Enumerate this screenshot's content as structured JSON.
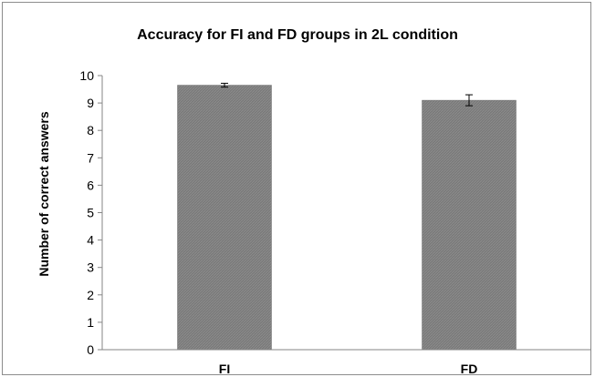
{
  "chart_data": {
    "type": "bar",
    "title": "Accuracy for FI and FD groups in 2L condition",
    "xlabel": "",
    "ylabel": "Number of correct answers",
    "categories": [
      "FI",
      "FD"
    ],
    "values": [
      9.65,
      9.1
    ],
    "error": [
      0.07,
      0.2
    ],
    "ylim": [
      0,
      10
    ],
    "yticks": [
      "0",
      "1",
      "2",
      "3",
      "4",
      "5",
      "6",
      "7",
      "8",
      "9",
      "10"
    ],
    "grid": false,
    "legend": "none",
    "bar_color": "#7f7f7f"
  }
}
